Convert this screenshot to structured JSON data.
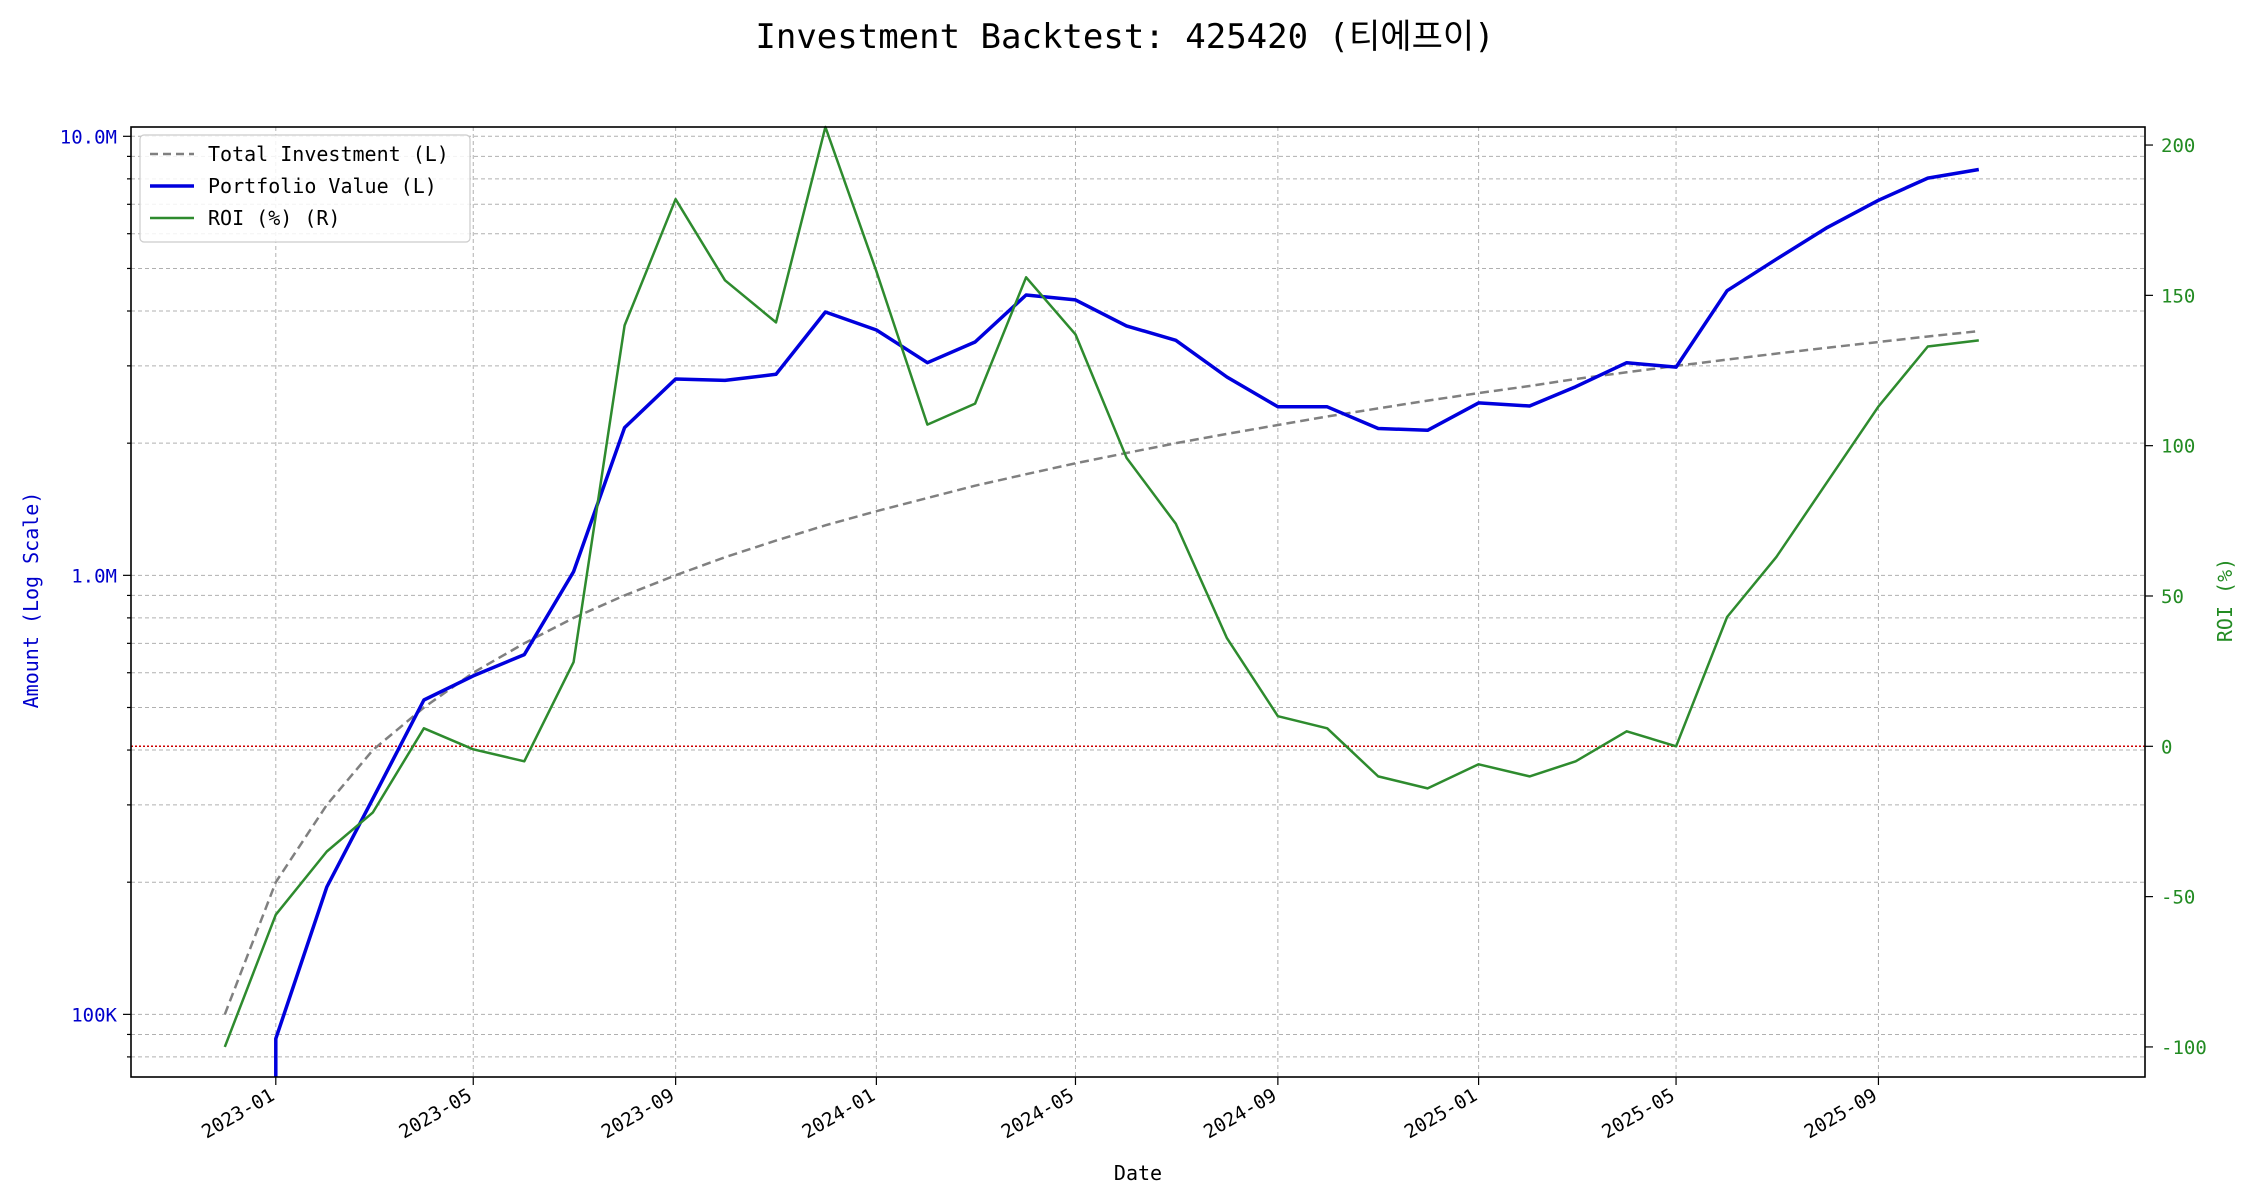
{
  "chart_data": {
    "type": "line",
    "title": "Investment Backtest: 425420 (티에프이)",
    "xlabel": "Date",
    "ylabel_left": "Amount (Log Scale)",
    "ylabel_right": "ROI (%)",
    "left_scale": "log",
    "left_ylim": [
      72000,
      10500000
    ],
    "right_ylim": [
      -110,
      206
    ],
    "xlim": [
      "2022-10-05",
      "2026-02-10"
    ],
    "x_ticks": [
      "2023-01",
      "2023-05",
      "2023-09",
      "2024-01",
      "2024-05",
      "2024-09",
      "2025-01",
      "2025-05",
      "2025-09"
    ],
    "x_tick_dates": [
      "2023-01-01",
      "2023-05-01",
      "2023-09-01",
      "2024-01-01",
      "2024-05-01",
      "2024-09-01",
      "2025-01-01",
      "2025-05-01",
      "2025-09-01"
    ],
    "left_ticks": [
      {
        "value": 100000,
        "label": "100K"
      },
      {
        "value": 1000000,
        "label": "1.0M"
      },
      {
        "value": 10000000,
        "label": "10.0M"
      }
    ],
    "right_ticks": [
      -100,
      -50,
      0,
      50,
      100,
      150,
      200
    ],
    "grid": true,
    "legend_position": "top-left",
    "legend": [
      "Total Investment (L)",
      "Portfolio Value (L)",
      "ROI (%) (R)"
    ],
    "colors": {
      "investment": "#808080",
      "portfolio": "#0000dd",
      "roi": "#2e8b2e",
      "zero_line": "#cc0000",
      "left_axis": "#0000cc",
      "right_axis": "#228b22"
    },
    "dates": [
      "2022-12-01",
      "2023-01-01",
      "2023-02-01",
      "2023-03-01",
      "2023-04-01",
      "2023-05-01",
      "2023-06-01",
      "2023-07-01",
      "2023-08-01",
      "2023-09-01",
      "2023-10-01",
      "2023-11-01",
      "2023-12-01",
      "2024-01-01",
      "2024-02-01",
      "2024-03-01",
      "2024-04-01",
      "2024-05-01",
      "2024-06-01",
      "2024-07-01",
      "2024-08-01",
      "2024-09-01",
      "2024-10-01",
      "2024-11-01",
      "2024-12-01",
      "2025-01-01",
      "2025-02-01",
      "2025-03-01",
      "2025-04-01",
      "2025-05-01",
      "2025-06-01",
      "2025-07-01",
      "2025-08-01",
      "2025-09-01",
      "2025-10-01",
      "2025-11-01"
    ],
    "series": [
      {
        "name": "Total Investment (L)",
        "axis": "left",
        "style": "dashed",
        "values": [
          100000,
          200000,
          300000,
          400000,
          500000,
          600000,
          700000,
          800000,
          900000,
          1000000,
          1100000,
          1200000,
          1300000,
          1400000,
          1500000,
          1600000,
          1700000,
          1800000,
          1900000,
          2000000,
          2100000,
          2200000,
          2300000,
          2400000,
          2500000,
          2600000,
          2700000,
          2800000,
          2900000,
          3000000,
          3100000,
          3200000,
          3300000,
          3400000,
          3500000,
          3600000
        ]
      },
      {
        "name": "Portfolio Value (L)",
        "axis": "left",
        "style": "solid",
        "values": [
          null,
          88000,
          195000,
          310000,
          520000,
          590000,
          660000,
          1020000,
          2170000,
          2800000,
          2780000,
          2870000,
          3980000,
          3620000,
          3050000,
          3400000,
          4350000,
          4240000,
          3700000,
          3430000,
          2830000,
          2420000,
          2420000,
          2160000,
          2140000,
          2470000,
          2430000,
          2690000,
          3050000,
          2980000,
          4450000,
          5250000,
          6200000,
          7150000,
          8030000,
          8400000
        ]
      },
      {
        "name": "ROI (%) (R)",
        "axis": "right",
        "style": "solid",
        "values": [
          -100,
          -56,
          -35,
          -22,
          6,
          -1,
          -5,
          28,
          140,
          182,
          155,
          141,
          206,
          158,
          107,
          114,
          156,
          137,
          96,
          74,
          36,
          10,
          6,
          -10,
          -14,
          -6,
          -10,
          -5,
          5,
          0,
          43,
          63,
          88,
          113,
          133,
          135
        ]
      }
    ]
  }
}
